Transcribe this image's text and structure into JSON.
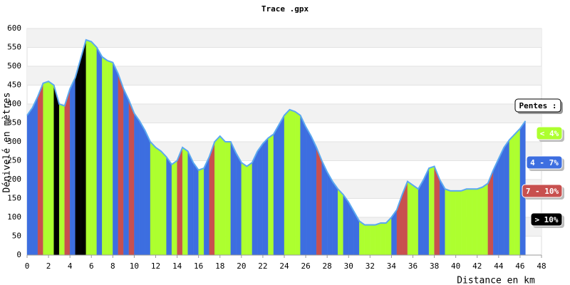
{
  "chart_data": {
    "type": "area",
    "title": "Trace .gpx",
    "x_label": "Distance en km",
    "y_label": "Dénivelé en mètres",
    "x": [
      0,
      0.5,
      1,
      1.5,
      2,
      2.5,
      3,
      3.5,
      4,
      4.5,
      5,
      5.5,
      6,
      6.5,
      7,
      7.5,
      8,
      8.5,
      9,
      9.5,
      10,
      10.5,
      11,
      11.5,
      12,
      12.5,
      13,
      13.5,
      14,
      14.5,
      15,
      15.5,
      16,
      16.5,
      17,
      17.5,
      18,
      18.5,
      19,
      19.5,
      20,
      20.5,
      21,
      21.5,
      22,
      22.5,
      23,
      23.5,
      24,
      24.5,
      25,
      25.5,
      26,
      26.5,
      27,
      27.5,
      28,
      28.5,
      29,
      29.5,
      30,
      30.5,
      31,
      31.5,
      32,
      32.5,
      33,
      33.5,
      34,
      34.5,
      35,
      35.5,
      36,
      36.5,
      37,
      37.5,
      38,
      38.5,
      39,
      39.5,
      40,
      40.5,
      41,
      41.5,
      42,
      42.5,
      43,
      43.5,
      44,
      44.5,
      45,
      45.5,
      46,
      46.5
    ],
    "values": [
      370,
      390,
      420,
      455,
      460,
      450,
      400,
      395,
      440,
      470,
      520,
      570,
      565,
      550,
      525,
      515,
      510,
      480,
      440,
      410,
      375,
      355,
      330,
      300,
      285,
      275,
      260,
      240,
      250,
      285,
      275,
      245,
      225,
      230,
      260,
      300,
      315,
      300,
      300,
      270,
      245,
      235,
      245,
      275,
      295,
      310,
      320,
      345,
      370,
      385,
      380,
      370,
      340,
      315,
      285,
      250,
      220,
      195,
      175,
      160,
      140,
      115,
      90,
      80,
      80,
      80,
      85,
      85,
      100,
      120,
      160,
      195,
      185,
      175,
      200,
      230,
      235,
      200,
      175,
      170,
      170,
      170,
      175,
      175,
      175,
      180,
      190,
      225,
      255,
      285,
      305,
      320,
      335,
      355
    ],
    "segment_colors": [
      "#3d6ee0",
      "#3d6ee0",
      "#c8504f",
      "#adff2f",
      "#adff2f",
      "#000000",
      "#adff2f",
      "#c8504f",
      "#3d6ee0",
      "#000000",
      "#000000",
      "#adff2f",
      "#adff2f",
      "#3d6ee0",
      "#adff2f",
      "#adff2f",
      "#3d6ee0",
      "#c8504f",
      "#3d6ee0",
      "#c8504f",
      "#3d6ee0",
      "#3d6ee0",
      "#3d6ee0",
      "#adff2f",
      "#adff2f",
      "#adff2f",
      "#3d6ee0",
      "#adff2f",
      "#c8504f",
      "#adff2f",
      "#3d6ee0",
      "#3d6ee0",
      "#adff2f",
      "#3d6ee0",
      "#c8504f",
      "#adff2f",
      "#adff2f",
      "#adff2f",
      "#3d6ee0",
      "#3d6ee0",
      "#adff2f",
      "#adff2f",
      "#3d6ee0",
      "#3d6ee0",
      "#3d6ee0",
      "#adff2f",
      "#3d6ee0",
      "#3d6ee0",
      "#adff2f",
      "#adff2f",
      "#adff2f",
      "#3d6ee0",
      "#3d6ee0",
      "#3d6ee0",
      "#c8504f",
      "#3d6ee0",
      "#3d6ee0",
      "#3d6ee0",
      "#adff2f",
      "#3d6ee0",
      "#3d6ee0",
      "#3d6ee0",
      "#adff2f",
      "#adff2f",
      "#adff2f",
      "#adff2f",
      "#adff2f",
      "#adff2f",
      "#3d6ee0",
      "#c8504f",
      "#c8504f",
      "#adff2f",
      "#adff2f",
      "#3d6ee0",
      "#3d6ee0",
      "#adff2f",
      "#c8504f",
      "#3d6ee0",
      "#adff2f",
      "#adff2f",
      "#adff2f",
      "#adff2f",
      "#adff2f",
      "#adff2f",
      "#adff2f",
      "#adff2f",
      "#c8504f",
      "#3d6ee0",
      "#3d6ee0",
      "#3d6ee0",
      "#adff2f",
      "#adff2f",
      "#3d6ee0"
    ],
    "line_color": "#5aa8f0",
    "xlim": [
      0,
      48
    ],
    "xticks": [
      0,
      2,
      4,
      6,
      8,
      10,
      12,
      14,
      16,
      18,
      20,
      22,
      24,
      26,
      28,
      30,
      32,
      34,
      36,
      38,
      40,
      42,
      44,
      46,
      48
    ],
    "ylim": [
      0,
      600
    ],
    "yticks": [
      0,
      50,
      100,
      150,
      200,
      250,
      300,
      350,
      400,
      450,
      500,
      550,
      600
    ],
    "grid": true,
    "legend": {
      "title": "Pentes :",
      "items": [
        {
          "name": "< 4%",
          "color": "#adff2f"
        },
        {
          "name": "4 - 7%",
          "color": "#3d6ee0"
        },
        {
          "name": "7 - 10%",
          "color": "#c8504f"
        },
        {
          "name": "> 10%",
          "color": "#000000"
        }
      ]
    }
  }
}
